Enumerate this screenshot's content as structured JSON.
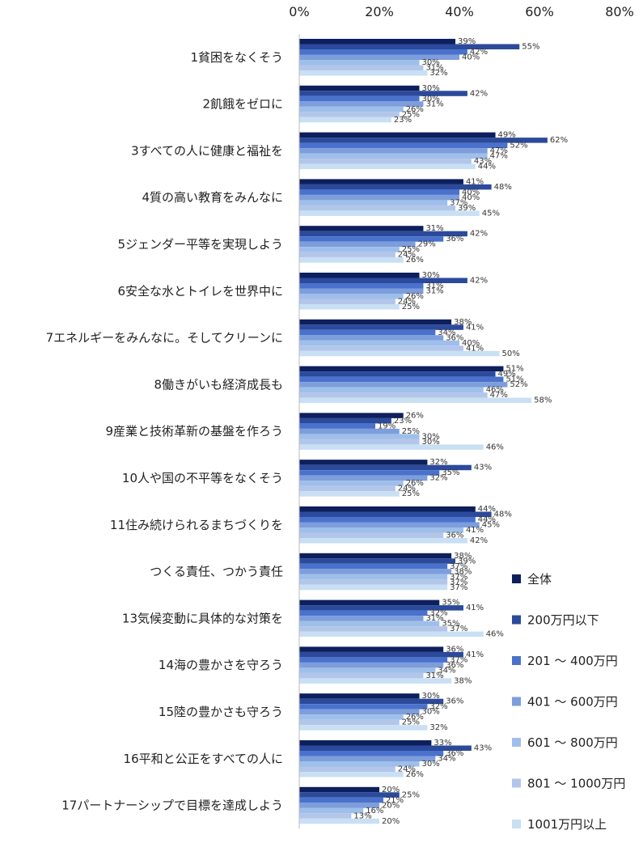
{
  "chart_data": {
    "type": "bar",
    "orientation": "horizontal",
    "xlim": [
      0,
      80
    ],
    "x_ticks": [
      "0%",
      "20%",
      "40%",
      "60%",
      "80%"
    ],
    "value_suffix": "%",
    "categories": [
      "1貧困をなくそう",
      "2飢餓をゼロに",
      "3すべての人に健康と福祉を",
      "4質の高い教育をみんなに",
      "5ジェンダー平等を実現しよう",
      "6安全な水とトイレを世界中に",
      "7エネルギーをみんなに。そしてクリーンに",
      "8働きがいも経済成長も",
      "9産業と技術革新の基盤を作ろう",
      "10人や国の不平等をなくそう",
      "11住み続けられるまちづくりを",
      "つくる責任、つかう責任",
      "13気候変動に具体的な対策を",
      "14海の豊かさを守ろう",
      "15陸の豊かさも守ろう",
      "16平和と公正をすべての人に",
      "17パートナーシップで目標を達成しよう"
    ],
    "series": [
      {
        "name": "全体",
        "color": "#0d1f5c",
        "values": [
          39,
          30,
          49,
          41,
          31,
          30,
          38,
          51,
          26,
          32,
          44,
          38,
          35,
          36,
          30,
          33,
          20
        ]
      },
      {
        "name": "200万円以下",
        "color": "#2b4a9b",
        "values": [
          55,
          42,
          62,
          48,
          42,
          42,
          41,
          49,
          23,
          43,
          48,
          39,
          41,
          41,
          36,
          43,
          25
        ]
      },
      {
        "name": "201 ～ 400万円",
        "color": "#4a72cc",
        "values": [
          42,
          30,
          52,
          40,
          36,
          31,
          34,
          51,
          19,
          35,
          44,
          37,
          32,
          37,
          32,
          36,
          21
        ]
      },
      {
        "name": "401 ～ 600万円",
        "color": "#7d9ddb",
        "values": [
          40,
          31,
          47,
          40,
          29,
          31,
          36,
          52,
          25,
          32,
          45,
          38,
          31,
          36,
          30,
          34,
          20
        ]
      },
      {
        "name": "601 ～ 800万円",
        "color": "#9ebfea",
        "values": [
          30,
          26,
          47,
          37,
          25,
          26,
          40,
          46,
          30,
          26,
          41,
          37,
          35,
          34,
          26,
          30,
          16
        ]
      },
      {
        "name": "801 ～ 1000万円",
        "color": "#b3c6ea",
        "values": [
          31,
          25,
          43,
          39,
          24,
          24,
          41,
          47,
          30,
          24,
          36,
          37,
          37,
          31,
          25,
          24,
          13
        ]
      },
      {
        "name": "1001万円以上",
        "color": "#c9dff4",
        "values": [
          32,
          23,
          44,
          45,
          26,
          25,
          50,
          58,
          46,
          25,
          42,
          37,
          46,
          38,
          32,
          26,
          20
        ]
      }
    ]
  }
}
